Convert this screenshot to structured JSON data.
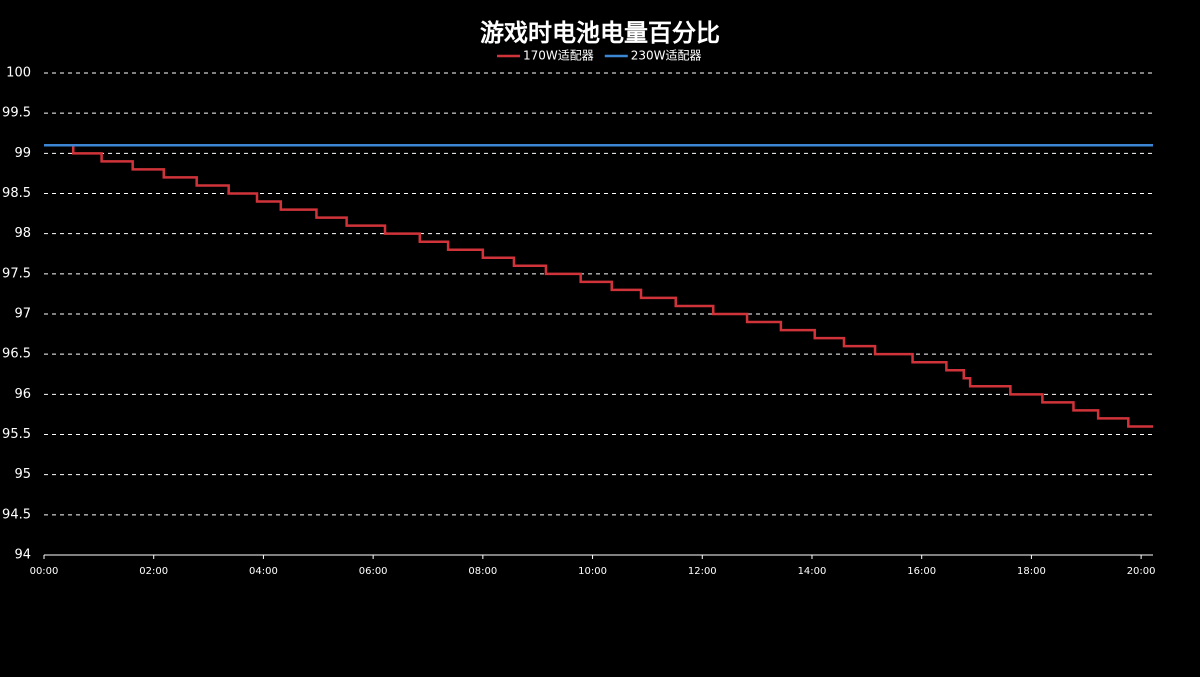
{
  "chart_data": {
    "type": "line",
    "title": "游戏时电池电量百分比",
    "xlim": [
      0,
      1213
    ],
    "xticks": [
      {
        "value": 0,
        "label": "00:00"
      },
      {
        "value": 120,
        "label": "02:00"
      },
      {
        "value": 240,
        "label": "04:00"
      },
      {
        "value": 360,
        "label": "06:00"
      },
      {
        "value": 480,
        "label": "08:00"
      },
      {
        "value": 600,
        "label": "10:00"
      },
      {
        "value": 720,
        "label": "12:00"
      },
      {
        "value": 840,
        "label": "14:00"
      },
      {
        "value": 960,
        "label": "16:00"
      },
      {
        "value": 1080,
        "label": "18:00"
      },
      {
        "value": 1200,
        "label": "20:00"
      }
    ],
    "ylim": [
      94,
      100
    ],
    "yticks": [
      94,
      94.5,
      95,
      95.5,
      96,
      96.5,
      97,
      97.5,
      98,
      98.5,
      99,
      99.5,
      100
    ],
    "grid": true,
    "series": [
      {
        "name": "170W适配器",
        "color": "#d0343a",
        "x": [
          0,
          32,
          32,
          63,
          63,
          97,
          97,
          131,
          131,
          167,
          167,
          202,
          202,
          233,
          233,
          259,
          259,
          298,
          298,
          331,
          331,
          373,
          373,
          411,
          411,
          442,
          442,
          480,
          480,
          514,
          514,
          549,
          549,
          587,
          587,
          621,
          621,
          653,
          653,
          691,
          691,
          732,
          732,
          769,
          769,
          806,
          806,
          843,
          843,
          875,
          875,
          909,
          909,
          950,
          950,
          987,
          987,
          1006,
          1006,
          1013,
          1013,
          1057,
          1057,
          1092,
          1092,
          1126,
          1126,
          1153,
          1153,
          1186,
          1186,
          1213
        ],
        "values": [
          99.1,
          99.1,
          99,
          99,
          98.9,
          98.9,
          98.8,
          98.8,
          98.7,
          98.7,
          98.6,
          98.6,
          98.5,
          98.5,
          98.4,
          98.4,
          98.3,
          98.3,
          98.2,
          98.2,
          98.1,
          98.1,
          98,
          98,
          97.9,
          97.9,
          97.8,
          97.8,
          97.7,
          97.7,
          97.6,
          97.6,
          97.5,
          97.5,
          97.4,
          97.4,
          97.3,
          97.3,
          97.2,
          97.2,
          97.1,
          97.1,
          97,
          97,
          96.9,
          96.9,
          96.8,
          96.8,
          96.7,
          96.7,
          96.6,
          96.6,
          96.5,
          96.5,
          96.4,
          96.4,
          96.3,
          96.3,
          96.2,
          96.2,
          96.1,
          96.1,
          96,
          96,
          95.9,
          95.9,
          95.8,
          95.8,
          95.7,
          95.7,
          95.6,
          95.6
        ]
      },
      {
        "name": "230W适配器",
        "color": "#3d86d4",
        "x": [
          0,
          1213
        ],
        "values": [
          99.1,
          99.1
        ]
      }
    ]
  }
}
